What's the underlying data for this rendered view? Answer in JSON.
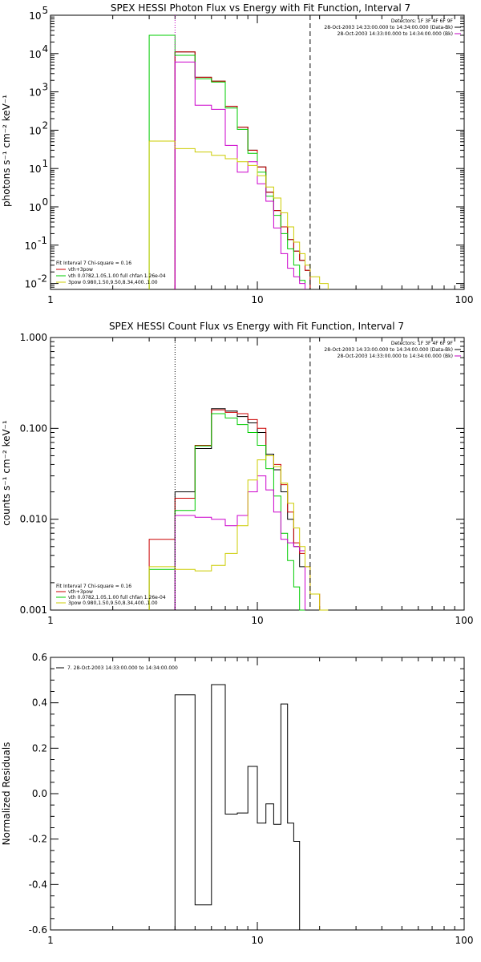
{
  "chart_data": [
    {
      "type": "line",
      "title": "SPEX HESSI Photon Flux vs Energy with Fit Function, Interval 7",
      "xlabel": "",
      "ylabel": "photons s⁻¹ cm⁻² keV⁻¹",
      "xscale": "log",
      "yscale": "log",
      "xlim": [
        1,
        100
      ],
      "ylim": [
        0.007,
        100000
      ],
      "x_ticks": [
        "1",
        "10",
        "100"
      ],
      "y_ticks": [
        {
          "v": 0.01,
          "mant": "10",
          "exp": "-2"
        },
        {
          "v": 0.1,
          "mant": "10",
          "exp": "-1"
        },
        {
          "v": 1,
          "mant": "10",
          "exp": "0"
        },
        {
          "v": 10,
          "mant": "10",
          "exp": "1"
        },
        {
          "v": 100,
          "mant": "10",
          "exp": "2"
        },
        {
          "v": 1000,
          "mant": "10",
          "exp": "3"
        },
        {
          "v": 10000,
          "mant": "10",
          "exp": "4"
        },
        {
          "v": 100000,
          "mant": "10",
          "exp": "5"
        }
      ],
      "vlines": [
        {
          "x": 4.0,
          "style": "dotted",
          "color": "#c000c0"
        },
        {
          "x": 18.0,
          "style": "dashed",
          "color": "#000000"
        }
      ],
      "info": [
        "Detectors: 1F 3F 4F 6F 9F",
        "28-Oct-2003 14:33:00.000 to 14:34:00.000 (Data-Bk)",
        "28-Oct-2003 14:33:00.000 to 14:34:00.000 (Bk)"
      ],
      "info_colors": [
        "#000000",
        "#000000",
        "#c000c0"
      ],
      "fit_text": [
        "Fit Interval 7   Chi-square = 0.16",
        "vth+3pow",
        "vth 0.0782,1.05,1.00  full chfan 1.26e-04",
        "3pow 0.980,1.50,9.50,8.34,400.,1.00"
      ],
      "fit_colors": [
        "#000000",
        "#cc0000",
        "#00cc00",
        "#cccc00"
      ],
      "edges": [
        3.0,
        4.0,
        5.0,
        6.0,
        7.0,
        8.0,
        9.0,
        10.0,
        11.0,
        12.0,
        13.0,
        14.0,
        15.0,
        16.0,
        17.0,
        18.0,
        20.0,
        22.0
      ],
      "series": [
        {
          "name": "",
          "color": "#000000",
          "values": [
            null,
            11000,
            2400,
            1900,
            420,
            120,
            30,
            11,
            2.4,
            0.8,
            0.3,
            0.14,
            0.07,
            0.04,
            0.022,
            null,
            null
          ]
        },
        {
          "name": "",
          "color": "#cc0000",
          "values": [
            null,
            11000,
            2400,
            1900,
            420,
            120,
            30,
            11,
            2.4,
            0.8,
            0.3,
            0.14,
            0.07,
            0.04,
            0.022,
            null,
            null
          ]
        },
        {
          "name": "",
          "color": "#00cc00",
          "values": [
            30000,
            9000,
            2200,
            1800,
            380,
            105,
            25,
            8,
            1.9,
            0.6,
            0.2,
            0.08,
            0.03,
            0.012,
            null,
            null,
            null
          ]
        },
        {
          "name": "",
          "color": "#cc00cc",
          "values": [
            null,
            6000,
            450,
            350,
            40,
            8,
            15,
            4,
            1.4,
            0.28,
            0.06,
            0.025,
            0.015,
            0.01,
            null,
            null,
            null
          ]
        },
        {
          "name": "",
          "color": "#cccc00",
          "values": [
            52,
            33,
            27,
            22,
            18,
            15,
            12,
            6.5,
            3.3,
            1.7,
            0.7,
            0.3,
            0.12,
            0.06,
            0.03,
            0.015,
            0.01
          ]
        }
      ]
    },
    {
      "type": "line",
      "title": "SPEX HESSI Count Flux vs Energy with Fit Function, Interval 7",
      "xlabel": "",
      "ylabel": "counts s⁻¹ cm⁻² keV⁻¹",
      "xscale": "log",
      "yscale": "log",
      "xlim": [
        1,
        100
      ],
      "ylim": [
        0.001,
        1.0
      ],
      "x_ticks": [
        "1",
        "10",
        "100"
      ],
      "y_ticks": [
        {
          "v": 0.001,
          "label": "0.001"
        },
        {
          "v": 0.01,
          "label": "0.010"
        },
        {
          "v": 0.1,
          "label": "0.100"
        },
        {
          "v": 1.0,
          "label": "1.000"
        }
      ],
      "vlines": [
        {
          "x": 4.0,
          "style": "dotted",
          "color": "#000000"
        },
        {
          "x": 18.0,
          "style": "dashed",
          "color": "#000000"
        }
      ],
      "info": [
        "Detectors: 1F 3F 4F 6F 9F",
        "28-Oct-2003 14:33:00.000 to 14:34:00.000 (Data-Bk)",
        "28-Oct-2003 14:33:00.000 to 14:34:00.000 (Bk)"
      ],
      "info_colors": [
        "#000000",
        "#000000",
        "#c000c0"
      ],
      "fit_text": [
        "Fit Interval 7   Chi-square = 0.16",
        "vth+3pow",
        "vth 0.0782,1.05,1.00  full chfan 1.26e-04",
        "3pow 0.980,1.50,9.50,8.34,400.,1.00"
      ],
      "fit_colors": [
        "#000000",
        "#cc0000",
        "#00cc00",
        "#cccc00"
      ],
      "edges": [
        3.0,
        4.0,
        5.0,
        6.0,
        7.0,
        8.0,
        9.0,
        10.0,
        11.0,
        12.0,
        13.0,
        14.0,
        15.0,
        16.0,
        17.0,
        18.0,
        20.0,
        22.0
      ],
      "series": [
        {
          "name": "",
          "color": "#000000",
          "values": [
            null,
            0.02,
            0.06,
            0.165,
            0.155,
            0.135,
            0.115,
            0.09,
            0.052,
            0.035,
            0.02,
            0.01,
            0.005,
            0.003,
            null,
            null,
            null
          ]
        },
        {
          "name": "",
          "color": "#cc0000",
          "values": [
            0.006,
            0.017,
            0.065,
            0.16,
            0.15,
            0.145,
            0.125,
            0.1,
            0.05,
            0.04,
            0.024,
            0.012,
            0.0055,
            0.0042,
            0.003,
            0.0015,
            null
          ]
        },
        {
          "name": "",
          "color": "#00cc00",
          "values": [
            0.0028,
            0.0125,
            0.064,
            0.145,
            0.13,
            0.11,
            0.09,
            0.065,
            0.036,
            0.018,
            0.007,
            0.0035,
            0.0018,
            0.001,
            null,
            null,
            null
          ]
        },
        {
          "name": "",
          "color": "#cc00cc",
          "values": [
            null,
            0.011,
            0.0105,
            0.01,
            0.0085,
            0.011,
            0.02,
            0.03,
            0.021,
            0.012,
            0.006,
            0.0055,
            0.005,
            0.0045,
            null,
            null,
            null
          ]
        },
        {
          "name": "",
          "color": "#cccc00",
          "values": [
            0.003,
            0.0028,
            0.0027,
            0.0031,
            0.0042,
            0.0085,
            0.027,
            0.045,
            0.05,
            0.038,
            0.025,
            0.015,
            0.008,
            0.005,
            0.003,
            0.0015,
            0.001
          ]
        }
      ]
    },
    {
      "type": "line",
      "title": "",
      "xlabel": "",
      "ylabel": "Normalized Residuals",
      "xscale": "log",
      "yscale": "linear",
      "xlim": [
        1,
        100
      ],
      "ylim": [
        -0.6,
        0.6
      ],
      "x_ticks": [
        "1",
        "10",
        "100"
      ],
      "y_ticks": [
        {
          "v": -0.6,
          "label": "-0.6"
        },
        {
          "v": -0.4,
          "label": "-0.4"
        },
        {
          "v": -0.2,
          "label": "-0.2"
        },
        {
          "v": 0.0,
          "label": "0.0"
        },
        {
          "v": 0.2,
          "label": "0.2"
        },
        {
          "v": 0.4,
          "label": "0.4"
        },
        {
          "v": 0.6,
          "label": "0.6"
        }
      ],
      "vlines": [],
      "legend_text": "7. 28-Oct-2003 14:33:00.000 to 14:34:00.000",
      "edges": [
        4.0,
        5.0,
        6.0,
        7.0,
        8.0,
        9.0,
        10.0,
        11.0,
        12.0,
        13.0,
        14.0,
        15.0,
        16.0,
        17.0,
        18.0
      ],
      "series": [
        {
          "name": "",
          "color": "#000000",
          "values": [
            0.435,
            -0.49,
            0.48,
            -0.09,
            -0.085,
            0.12,
            -0.13,
            -0.045,
            -0.135,
            0.395,
            -0.13,
            -0.21,
            -0.61,
            -0.61
          ]
        }
      ]
    }
  ]
}
